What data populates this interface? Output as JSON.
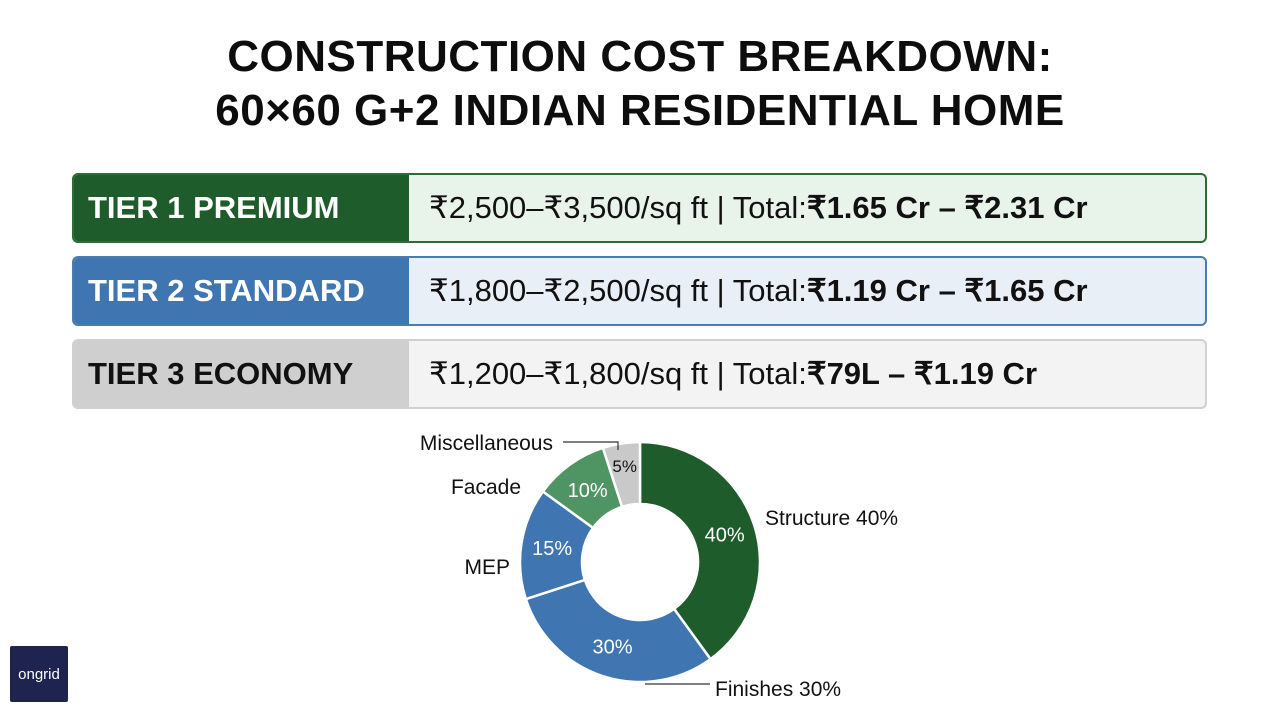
{
  "title": {
    "line1": "CONSTRUCTION COST BREAKDOWN:",
    "line2": "60×60 G+2 INDIAN RESIDENTIAL HOME"
  },
  "tiers": [
    {
      "label": "TIER 1 PREMIUM",
      "rate": "₹2,500–₹3,500/sq ft | Total: ",
      "total": "₹1.65 Cr – ₹2.31 Cr",
      "color": "#1f5c2c"
    },
    {
      "label": "TIER 2 STANDARD",
      "rate": "₹1,800–₹2,500/sq ft | Total: ",
      "total": "₹1.19 Cr – ₹1.65 Cr",
      "color": "#3f76b1"
    },
    {
      "label": "TIER 3 ECONOMY",
      "rate": "₹1,200–₹1,800/sq ft | Total: ",
      "total": "₹79L – ₹1.19 Cr",
      "color": "#cfcfcf"
    }
  ],
  "chart_data": {
    "type": "pie",
    "style": "donut",
    "slices": [
      {
        "label": "Structure 40%",
        "inner": "40%",
        "value": 40,
        "color": "#1f5c2c"
      },
      {
        "label": "Finishes 30%",
        "inner": "30%",
        "value": 30,
        "color": "#3f76b1"
      },
      {
        "label": "MEP",
        "inner": "15%",
        "value": 15,
        "color": "#3f76b1"
      },
      {
        "label": "Facade",
        "inner": "10%",
        "value": 10,
        "color": "#4f9463"
      },
      {
        "label": "Miscellaneous",
        "inner": "5%",
        "value": 5,
        "color": "#c9c9c9"
      }
    ]
  },
  "logo": {
    "text": "ongrid"
  }
}
